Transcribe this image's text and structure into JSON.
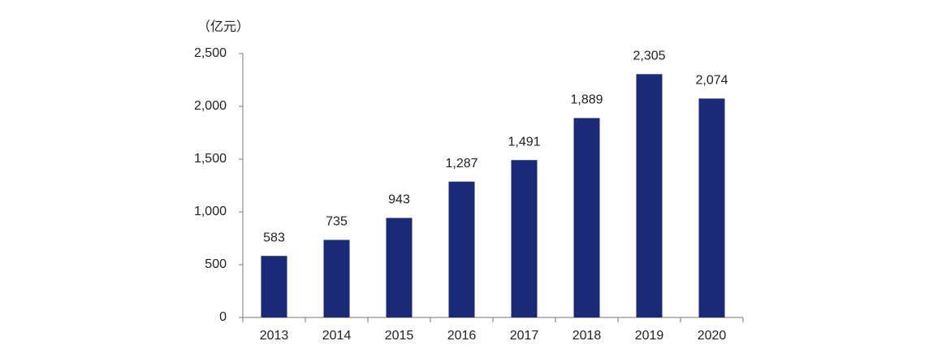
{
  "chart_data": {
    "type": "bar",
    "unit_label": "（亿元）",
    "categories": [
      "2013",
      "2014",
      "2015",
      "2016",
      "2017",
      "2018",
      "2019",
      "2020"
    ],
    "values": [
      583,
      735,
      943,
      1287,
      1491,
      1889,
      2305,
      2074
    ],
    "value_labels": [
      "583",
      "735",
      "943",
      "1,287",
      "1,491",
      "1,889",
      "2,305",
      "2,074"
    ],
    "color": "#1b2a78",
    "ylim": [
      0,
      2500
    ],
    "yticks": [
      0,
      500,
      {
        "value": 1000,
        "label": "1,000"
      },
      {
        "value": 1500,
        "label": "1,500"
      },
      {
        "value": 2000,
        "label": "2,000"
      },
      {
        "value": 2500,
        "label": "2,500"
      }
    ],
    "grid": false
  }
}
